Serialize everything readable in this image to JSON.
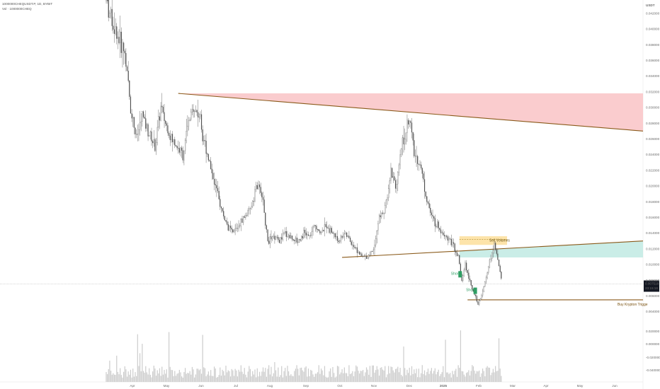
{
  "header": {
    "symbol_line": "1000000CHEQUSDT.P, 1D, BYBIT",
    "volume_line": "Vol · 1000000CHEQ"
  },
  "price_scale": {
    "currency": "USDT",
    "last_price": "0.007518",
    "countdown": "23:15:18"
  },
  "annotations": {
    "sell_label": "Sell Volumes",
    "buy_label": "Buy Krypton Trigge",
    "marker_1": "Short",
    "marker_2": "Short"
  },
  "colors": {
    "resistance_zone": "#f9c6c9",
    "support_zone": "#c7ece6",
    "sell_box": "#fde3a5",
    "trendline": "#8a5a1a",
    "candle": "#4a4a4a",
    "volume": "#cccccc",
    "marker_green": "#2e9e63",
    "last_price_bg": "#131722"
  },
  "chart_data": {
    "type": "candlestick",
    "x_axis": {
      "tick_labels": [
        "Apr",
        "May",
        "Jun",
        "Jul",
        "Aug",
        "Sep",
        "Oct",
        "Nov",
        "Dec",
        "2025",
        "Feb",
        "Mar",
        "Apr",
        "May",
        "Jun"
      ]
    },
    "y_axis": {
      "unit": "USDT",
      "range": [
        0.00405,
        0.0437
      ],
      "tick_labels": [
        "0.042000",
        "0.040000",
        "0.038000",
        "0.036000",
        "0.034000",
        "0.032000",
        "0.030000",
        "0.028000",
        "0.026000",
        "0.024000",
        "0.022000",
        "0.020000",
        "0.018000",
        "0.016000",
        "0.014000",
        "0.012000",
        "0.010000",
        "0.008000",
        "0.006000",
        "0.004000"
      ]
    },
    "volume_axis": {
      "tick_labels": [
        "0.020000",
        "0.000000",
        "-0.020000",
        "-0.040000"
      ]
    },
    "close_path": [
      [
        "2024-03-20",
        0.0437
      ],
      [
        "2024-03-25",
        0.041
      ],
      [
        "2024-03-30",
        0.039
      ],
      [
        "2024-04-05",
        0.037
      ],
      [
        "2024-04-10",
        0.03
      ],
      [
        "2024-04-15",
        0.026
      ],
      [
        "2024-04-20",
        0.029
      ],
      [
        "2024-04-25",
        0.027
      ],
      [
        "2024-05-01",
        0.025
      ],
      [
        "2024-05-06",
        0.03
      ],
      [
        "2024-05-10",
        0.028
      ],
      [
        "2024-05-15",
        0.026
      ],
      [
        "2024-05-20",
        0.025
      ],
      [
        "2024-05-25",
        0.024
      ],
      [
        "2024-05-30",
        0.028
      ],
      [
        "2024-06-03",
        0.03
      ],
      [
        "2024-06-08",
        0.029
      ],
      [
        "2024-06-12",
        0.026
      ],
      [
        "2024-06-17",
        0.023
      ],
      [
        "2024-06-22",
        0.02
      ],
      [
        "2024-06-27",
        0.017
      ],
      [
        "2024-07-02",
        0.015
      ],
      [
        "2024-07-07",
        0.014
      ],
      [
        "2024-07-12",
        0.015
      ],
      [
        "2024-07-17",
        0.016
      ],
      [
        "2024-07-22",
        0.017
      ],
      [
        "2024-07-27",
        0.02
      ],
      [
        "2024-08-01",
        0.019
      ],
      [
        "2024-08-06",
        0.013
      ],
      [
        "2024-08-11",
        0.0135
      ],
      [
        "2024-08-16",
        0.013
      ],
      [
        "2024-08-21",
        0.014
      ],
      [
        "2024-08-26",
        0.0135
      ],
      [
        "2024-09-01",
        0.013
      ],
      [
        "2024-09-06",
        0.014
      ],
      [
        "2024-09-11",
        0.0135
      ],
      [
        "2024-09-16",
        0.015
      ],
      [
        "2024-09-21",
        0.014
      ],
      [
        "2024-09-26",
        0.015
      ],
      [
        "2024-10-01",
        0.014
      ],
      [
        "2024-10-06",
        0.013
      ],
      [
        "2024-10-11",
        0.014
      ],
      [
        "2024-10-16",
        0.013
      ],
      [
        "2024-10-21",
        0.012
      ],
      [
        "2024-10-26",
        0.011
      ],
      [
        "2024-10-31",
        0.011
      ],
      [
        "2024-11-05",
        0.012
      ],
      [
        "2024-11-10",
        0.016
      ],
      [
        "2024-11-15",
        0.017
      ],
      [
        "2024-11-20",
        0.022
      ],
      [
        "2024-11-25",
        0.02
      ],
      [
        "2024-11-30",
        0.026
      ],
      [
        "2024-12-03",
        0.027
      ],
      [
        "2024-12-06",
        0.029
      ],
      [
        "2024-12-10",
        0.024
      ],
      [
        "2024-12-15",
        0.023
      ],
      [
        "2024-12-20",
        0.019
      ],
      [
        "2024-12-25",
        0.016
      ],
      [
        "2024-12-30",
        0.015
      ],
      [
        "2025-01-04",
        0.014
      ],
      [
        "2025-01-09",
        0.0135
      ],
      [
        "2025-01-14",
        0.012
      ],
      [
        "2025-01-17",
        0.011
      ],
      [
        "2025-01-20",
        0.0078
      ],
      [
        "2025-01-23",
        0.01
      ],
      [
        "2025-01-26",
        0.0085
      ],
      [
        "2025-01-30",
        0.0065
      ],
      [
        "2025-02-03",
        0.005
      ],
      [
        "2025-02-06",
        0.006
      ],
      [
        "2025-02-10",
        0.0085
      ],
      [
        "2025-02-14",
        0.011
      ],
      [
        "2025-02-17",
        0.0125
      ],
      [
        "2025-02-20",
        0.0105
      ],
      [
        "2025-02-24",
        0.0075
      ]
    ],
    "resistance_zone": {
      "top": [
        [
          "2024-05-21",
          0.0318
        ],
        [
          "2025-06-25",
          0.0318
        ]
      ],
      "trendline": [
        [
          "2024-05-21",
          0.0318
        ],
        [
          "2025-06-25",
          0.027
        ]
      ]
    },
    "support_zone": {
      "trendline": [
        [
          "2024-10-09",
          0.0109
        ],
        [
          "2025-06-25",
          0.013
        ]
      ],
      "bottom": [
        [
          "2025-01-18",
          0.0109
        ],
        [
          "2025-06-25",
          0.0109
        ]
      ]
    },
    "sell_zone": {
      "from": "2025-01-18",
      "to": "2025-02-28",
      "top": 0.0136,
      "bottom": 0.0125,
      "dashed_level": 0.0132
    },
    "buy_level": {
      "from": "2025-01-25",
      "to": "2025-06-25",
      "price": 0.0055
    },
    "markers": [
      {
        "date": "2025-01-18",
        "price": 0.0088
      },
      {
        "date": "2025-01-31",
        "price": 0.0067
      }
    ],
    "last_price": 0.007518,
    "grid": false,
    "legend": "none"
  }
}
